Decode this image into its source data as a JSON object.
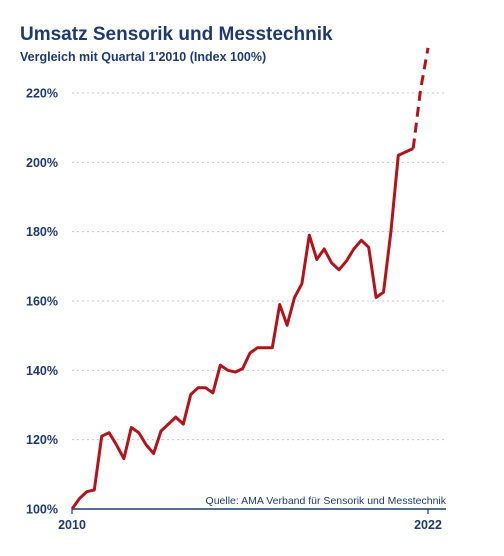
{
  "header": {
    "title": "Umsatz Sensorik und Messtechnik",
    "subtitle": "Vergleich mit Quartal 1'2010 (Index 100%)"
  },
  "source": "Quelle: AMA Verband für Sensorik und Messtechnik",
  "colors": {
    "line": "#b3131b",
    "text": "#1f3a72",
    "grid": "#c8c8c8"
  },
  "chart_data": {
    "type": "line",
    "title": "Umsatz Sensorik und Messtechnik",
    "subtitle": "Vergleich mit Quartal 1'2010 (Index 100%)",
    "xlabel": "",
    "ylabel": "",
    "x_tick_labels": [
      "2010",
      "2022"
    ],
    "y_ticks": [
      100,
      120,
      140,
      160,
      180,
      200,
      220
    ],
    "y_tick_labels": [
      "100%",
      "120%",
      "140%",
      "160%",
      "180%",
      "200%",
      "220%"
    ],
    "ylim": [
      100,
      233
    ],
    "xlim": [
      2010.0,
      2022.0
    ],
    "grid": "horizontal dotted",
    "series": [
      {
        "x": [
          2010.0,
          2010.25,
          2010.5,
          2010.75,
          2011.0,
          2011.25,
          2011.5,
          2011.75,
          2012.0,
          2012.25,
          2012.5,
          2012.75,
          2013.0,
          2013.25,
          2013.5,
          2013.75,
          2014.0,
          2014.25,
          2014.5,
          2014.75,
          2015.0,
          2015.25,
          2015.5,
          2015.75,
          2016.0,
          2016.25,
          2016.5,
          2016.75,
          2017.0,
          2017.25,
          2017.5,
          2017.75,
          2018.0,
          2018.25,
          2018.5,
          2018.75,
          2019.0,
          2019.25,
          2019.5,
          2019.75,
          2020.0,
          2020.25,
          2020.5,
          2020.75,
          2021.0,
          2021.25,
          2021.5
        ],
        "values": [
          100,
          103,
          105,
          105.5,
          121,
          122,
          118.5,
          114.5,
          123.5,
          122,
          118.5,
          116,
          122.5,
          124.5,
          126.5,
          124.5,
          133,
          135,
          135,
          133.5,
          141.5,
          140,
          139.5,
          140.5,
          145,
          146.5,
          146.5,
          146.5,
          159,
          153,
          161,
          165,
          179,
          172,
          175,
          171,
          169,
          171.5,
          175,
          177.5,
          175.5,
          161,
          162.5,
          180,
          202,
          203,
          204
        ]
      },
      {
        "style": "dashed",
        "x": [
          2021.5,
          2021.75,
          2022.0
        ],
        "values": [
          204,
          221,
          233
        ]
      }
    ]
  }
}
